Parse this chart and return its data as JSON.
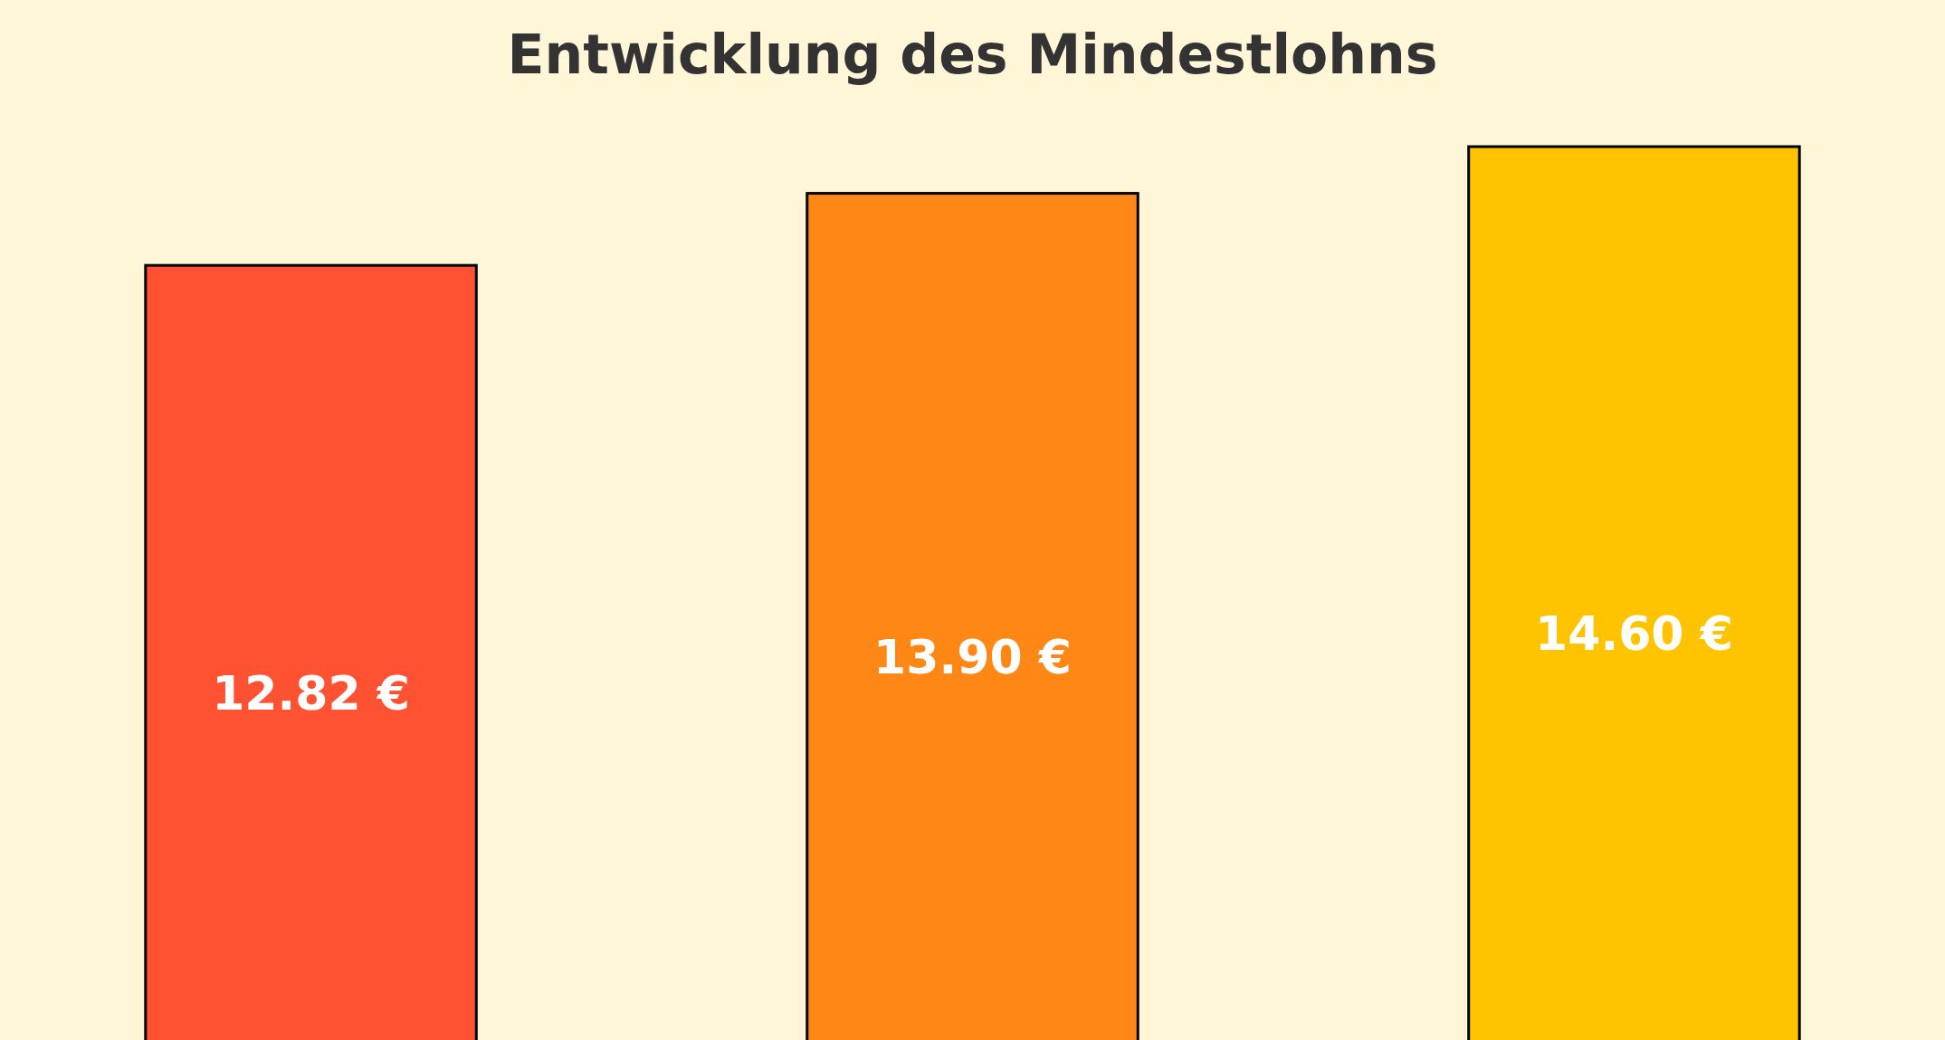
{
  "chart_data": {
    "type": "bar",
    "title": "Entwicklung des Mindestlohns",
    "categories": [
      null,
      null,
      null
    ],
    "values": [
      12.82,
      13.9,
      14.6
    ],
    "colors": [
      "#ff5233",
      "#ff8716",
      "#ffc300"
    ],
    "value_labels": [
      "12.82 €",
      "13.90 €",
      "14.60 €"
    ]
  }
}
